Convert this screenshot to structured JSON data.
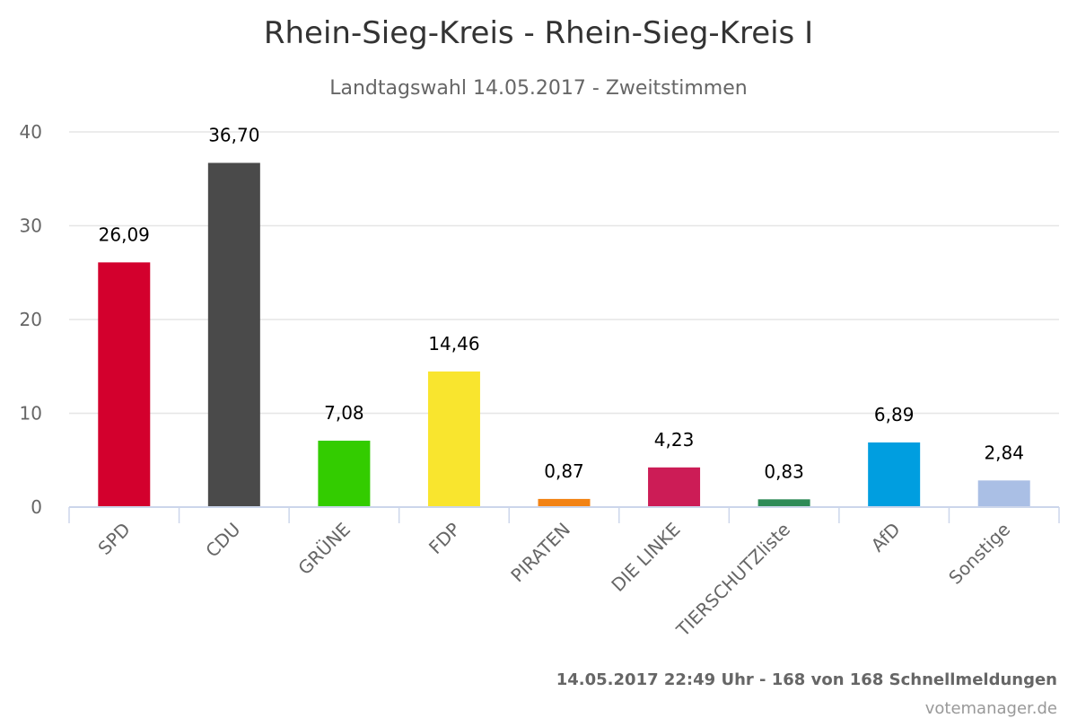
{
  "chart_data": {
    "type": "bar",
    "title": "Rhein-Sieg-Kreis - Rhein-Sieg-Kreis I",
    "subtitle": "Landtagswahl 14.05.2017 - Zweitstimmen",
    "categories": [
      "SPD",
      "CDU",
      "GRÜNE",
      "FDP",
      "PIRATEN",
      "DIE LINKE",
      "TIERSCHUTZliste",
      "AfD",
      "Sonstige"
    ],
    "values": [
      26.09,
      36.7,
      7.08,
      14.46,
      0.87,
      4.23,
      0.83,
      6.89,
      2.84
    ],
    "data_labels": [
      "26,09",
      "36,70",
      "7,08",
      "14,46",
      "0,87",
      "4,23",
      "0,83",
      "6,89",
      "2,84"
    ],
    "colors": [
      "#d3002d",
      "#4a4a4a",
      "#33cc00",
      "#f9e52e",
      "#f28315",
      "#cc1c56",
      "#2e8b57",
      "#009ee0",
      "#aabfe5"
    ],
    "yticks": [
      0,
      10,
      20,
      30,
      40
    ],
    "ylim": [
      0,
      40
    ],
    "grid": true,
    "legend": false
  },
  "footer": {
    "status": "14.05.2017 22:49 Uhr - 168 von 168 Schnellmeldungen",
    "source": "votemanager.de"
  },
  "colors": {
    "gridline": "#e6e6e6",
    "axis": "#ccd6eb"
  }
}
